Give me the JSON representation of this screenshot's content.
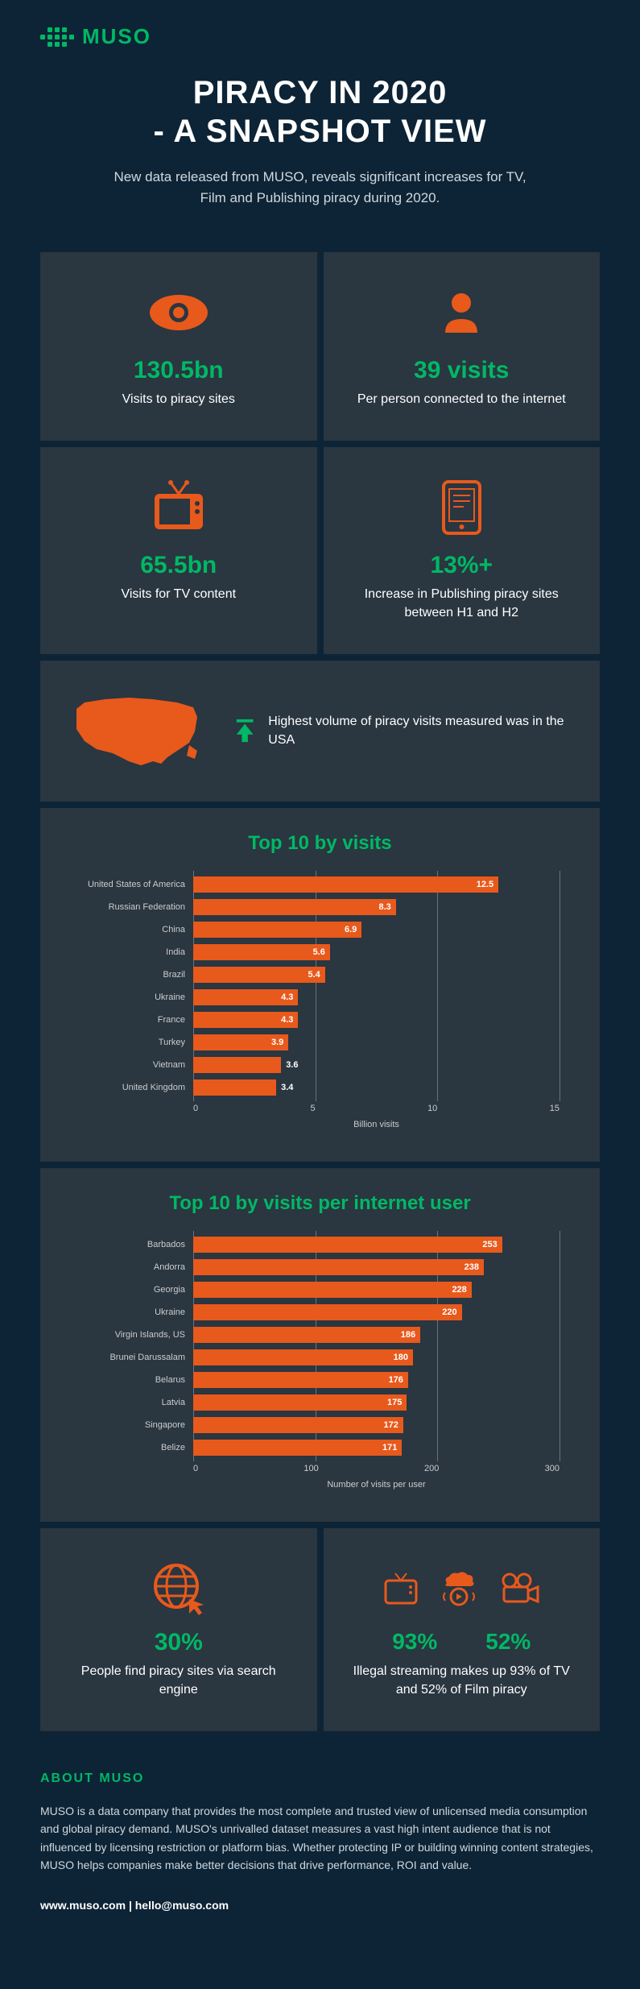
{
  "brand": {
    "name": "MUSO",
    "color": "#00b865"
  },
  "title_line1": "PIRACY IN 2020",
  "title_line2": "- A SNAPSHOT VIEW",
  "subtitle": "New data released from MUSO, reveals significant increases for TV, Film and Publishing piracy during 2020.",
  "colors": {
    "background": "#0d2436",
    "card": "#2a3640",
    "accent": "#00b865",
    "orange": "#e8591c",
    "text": "#ffffff"
  },
  "stats": [
    {
      "icon": "eye-icon",
      "value": "130.5bn",
      "label": "Visits to piracy sites"
    },
    {
      "icon": "person-icon",
      "value": "39 visits",
      "label": "Per person connected to the internet"
    },
    {
      "icon": "tv-icon",
      "value": "65.5bn",
      "label": "Visits for TV content"
    },
    {
      "icon": "tablet-icon",
      "value": "13%+",
      "label": "Increase in Publishing piracy sites between H1 and H2"
    }
  ],
  "usa": {
    "caption": "Highest volume of piracy visits measured was in the USA"
  },
  "chart1": {
    "type": "bar",
    "title": "Top 10 by visits",
    "axis_title": "Billion visits",
    "xlim": [
      0,
      15
    ],
    "ticks": [
      0,
      5,
      10,
      15
    ],
    "bar_color": "#e8591c",
    "rows": [
      {
        "label": "United States of America",
        "value": 12.5
      },
      {
        "label": "Russian Federation",
        "value": 8.3
      },
      {
        "label": "China",
        "value": 6.9
      },
      {
        "label": "India",
        "value": 5.6
      },
      {
        "label": "Brazil",
        "value": 5.4
      },
      {
        "label": "Ukraine",
        "value": 4.3
      },
      {
        "label": "France",
        "value": 4.3
      },
      {
        "label": "Turkey",
        "value": 3.9
      },
      {
        "label": "Vietnam",
        "value": 3.6
      },
      {
        "label": "United Kingdom",
        "value": 3.4
      }
    ]
  },
  "chart2": {
    "type": "bar",
    "title": "Top 10 by visits per internet user",
    "axis_title": "Number of visits per user",
    "xlim": [
      0,
      300
    ],
    "ticks": [
      0,
      100,
      200,
      300
    ],
    "bar_color": "#e8591c",
    "rows": [
      {
        "label": "Barbados",
        "value": 253
      },
      {
        "label": "Andorra",
        "value": 238
      },
      {
        "label": "Georgia",
        "value": 228
      },
      {
        "label": "Ukraine",
        "value": 220
      },
      {
        "label": "Virgin Islands, US",
        "value": 186
      },
      {
        "label": "Brunei Darussalam",
        "value": 180
      },
      {
        "label": "Belarus",
        "value": 176
      },
      {
        "label": "Latvia",
        "value": 175
      },
      {
        "label": "Singapore",
        "value": 172
      },
      {
        "label": "Belize",
        "value": 171
      }
    ]
  },
  "lower": [
    {
      "value": "30%",
      "label": "People find piracy sites via search engine"
    },
    {
      "value1": "93%",
      "value2": "52%",
      "label": "Illegal streaming makes up 93% of TV and 52% of Film piracy"
    }
  ],
  "about": {
    "title": "ABOUT MUSO",
    "text": "MUSO is a data company that provides the most complete and trusted view of unlicensed media consumption and global piracy demand. MUSO's unrivalled dataset measures a vast high intent audience that is not influenced by licensing restriction or platform bias. Whether protecting IP or building winning content strategies, MUSO helps companies make better decisions that drive performance, ROI and value.",
    "footer": "www.muso.com | hello@muso.com"
  }
}
